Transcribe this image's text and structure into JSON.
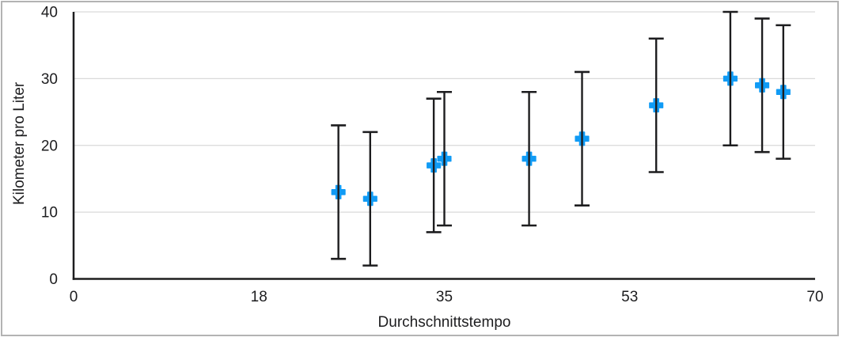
{
  "chart_data": {
    "type": "scatter",
    "title": "",
    "xlabel": "Durchschnittstempo",
    "ylabel": "Kilometer pro Liter",
    "xlim": [
      0,
      70
    ],
    "ylim": [
      0,
      40
    ],
    "x_tick_labels": [
      "0",
      "18",
      "35",
      "53",
      "70"
    ],
    "y_ticks": [
      0,
      10,
      20,
      30,
      40
    ],
    "y_tick_labels": [
      "0",
      "10",
      "20",
      "30",
      "40"
    ],
    "grid": "horizontal-only",
    "legend": "none",
    "series": [
      {
        "name": "Kilometer pro Liter",
        "marker": "plus",
        "y_error_plus_minus": 10,
        "points": [
          {
            "x": 25,
            "y": 13
          },
          {
            "x": 28,
            "y": 12
          },
          {
            "x": 34,
            "y": 17
          },
          {
            "x": 35,
            "y": 18
          },
          {
            "x": 43,
            "y": 18
          },
          {
            "x": 48,
            "y": 21
          },
          {
            "x": 55,
            "y": 26
          },
          {
            "x": 62,
            "y": 30
          },
          {
            "x": 65,
            "y": 29
          },
          {
            "x": 67,
            "y": 28
          }
        ]
      }
    ]
  },
  "colors": {
    "marker_blue": "#109bf5",
    "error_bar": "#1d1d1f",
    "axis_line": "#1d1d1f",
    "gridline": "#d9d9d9",
    "text": "#1d1d1f",
    "frame_border": "#b3b3b3",
    "background": "#ffffff"
  }
}
